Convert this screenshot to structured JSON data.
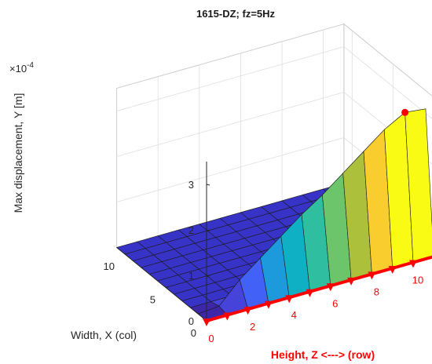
{
  "chart_data": {
    "type": "surface",
    "title": "1615-DZ; fz=5Hz",
    "zlabel": "Max displacement, Y [m]",
    "zmultiplier": "×10",
    "zmultiplier_exp": "-4",
    "xlabel": "Width, X (col)",
    "ylabel": "Height, Z <---> (row)",
    "x_ticks": [
      "0",
      "5",
      "10"
    ],
    "y_ticks": [
      "0",
      "2",
      "4",
      "6",
      "8",
      "10"
    ],
    "z_ticks": [
      "0",
      "1",
      "2",
      "3"
    ],
    "xlim": [
      0,
      11
    ],
    "ylim": [
      0,
      11
    ],
    "zlim": [
      0,
      3.5
    ],
    "units": "x10^-4 m",
    "ridge_col": 1,
    "ridge_values": [
      0.01,
      0.05,
      0.5,
      0.85,
      1.2,
      1.55,
      1.85,
      2.2,
      2.55,
      2.9,
      3.15,
      3.1
    ],
    "flat_value": 0,
    "max_point": {
      "x": 1,
      "y": 10,
      "value": 3.15
    },
    "colormap": [
      "#3e26a8",
      "#4543d9",
      "#4161f7",
      "#2e7ff5",
      "#1d9adb",
      "#10b0c4",
      "#2fbe9f",
      "#6cc56a",
      "#acc03c",
      "#e2b531",
      "#f9cd2d",
      "#f9fb15"
    ],
    "grid": true,
    "colors": {
      "flat": "#3833c7",
      "marker": "#ff0000",
      "height_axis": "#ff0000"
    }
  }
}
